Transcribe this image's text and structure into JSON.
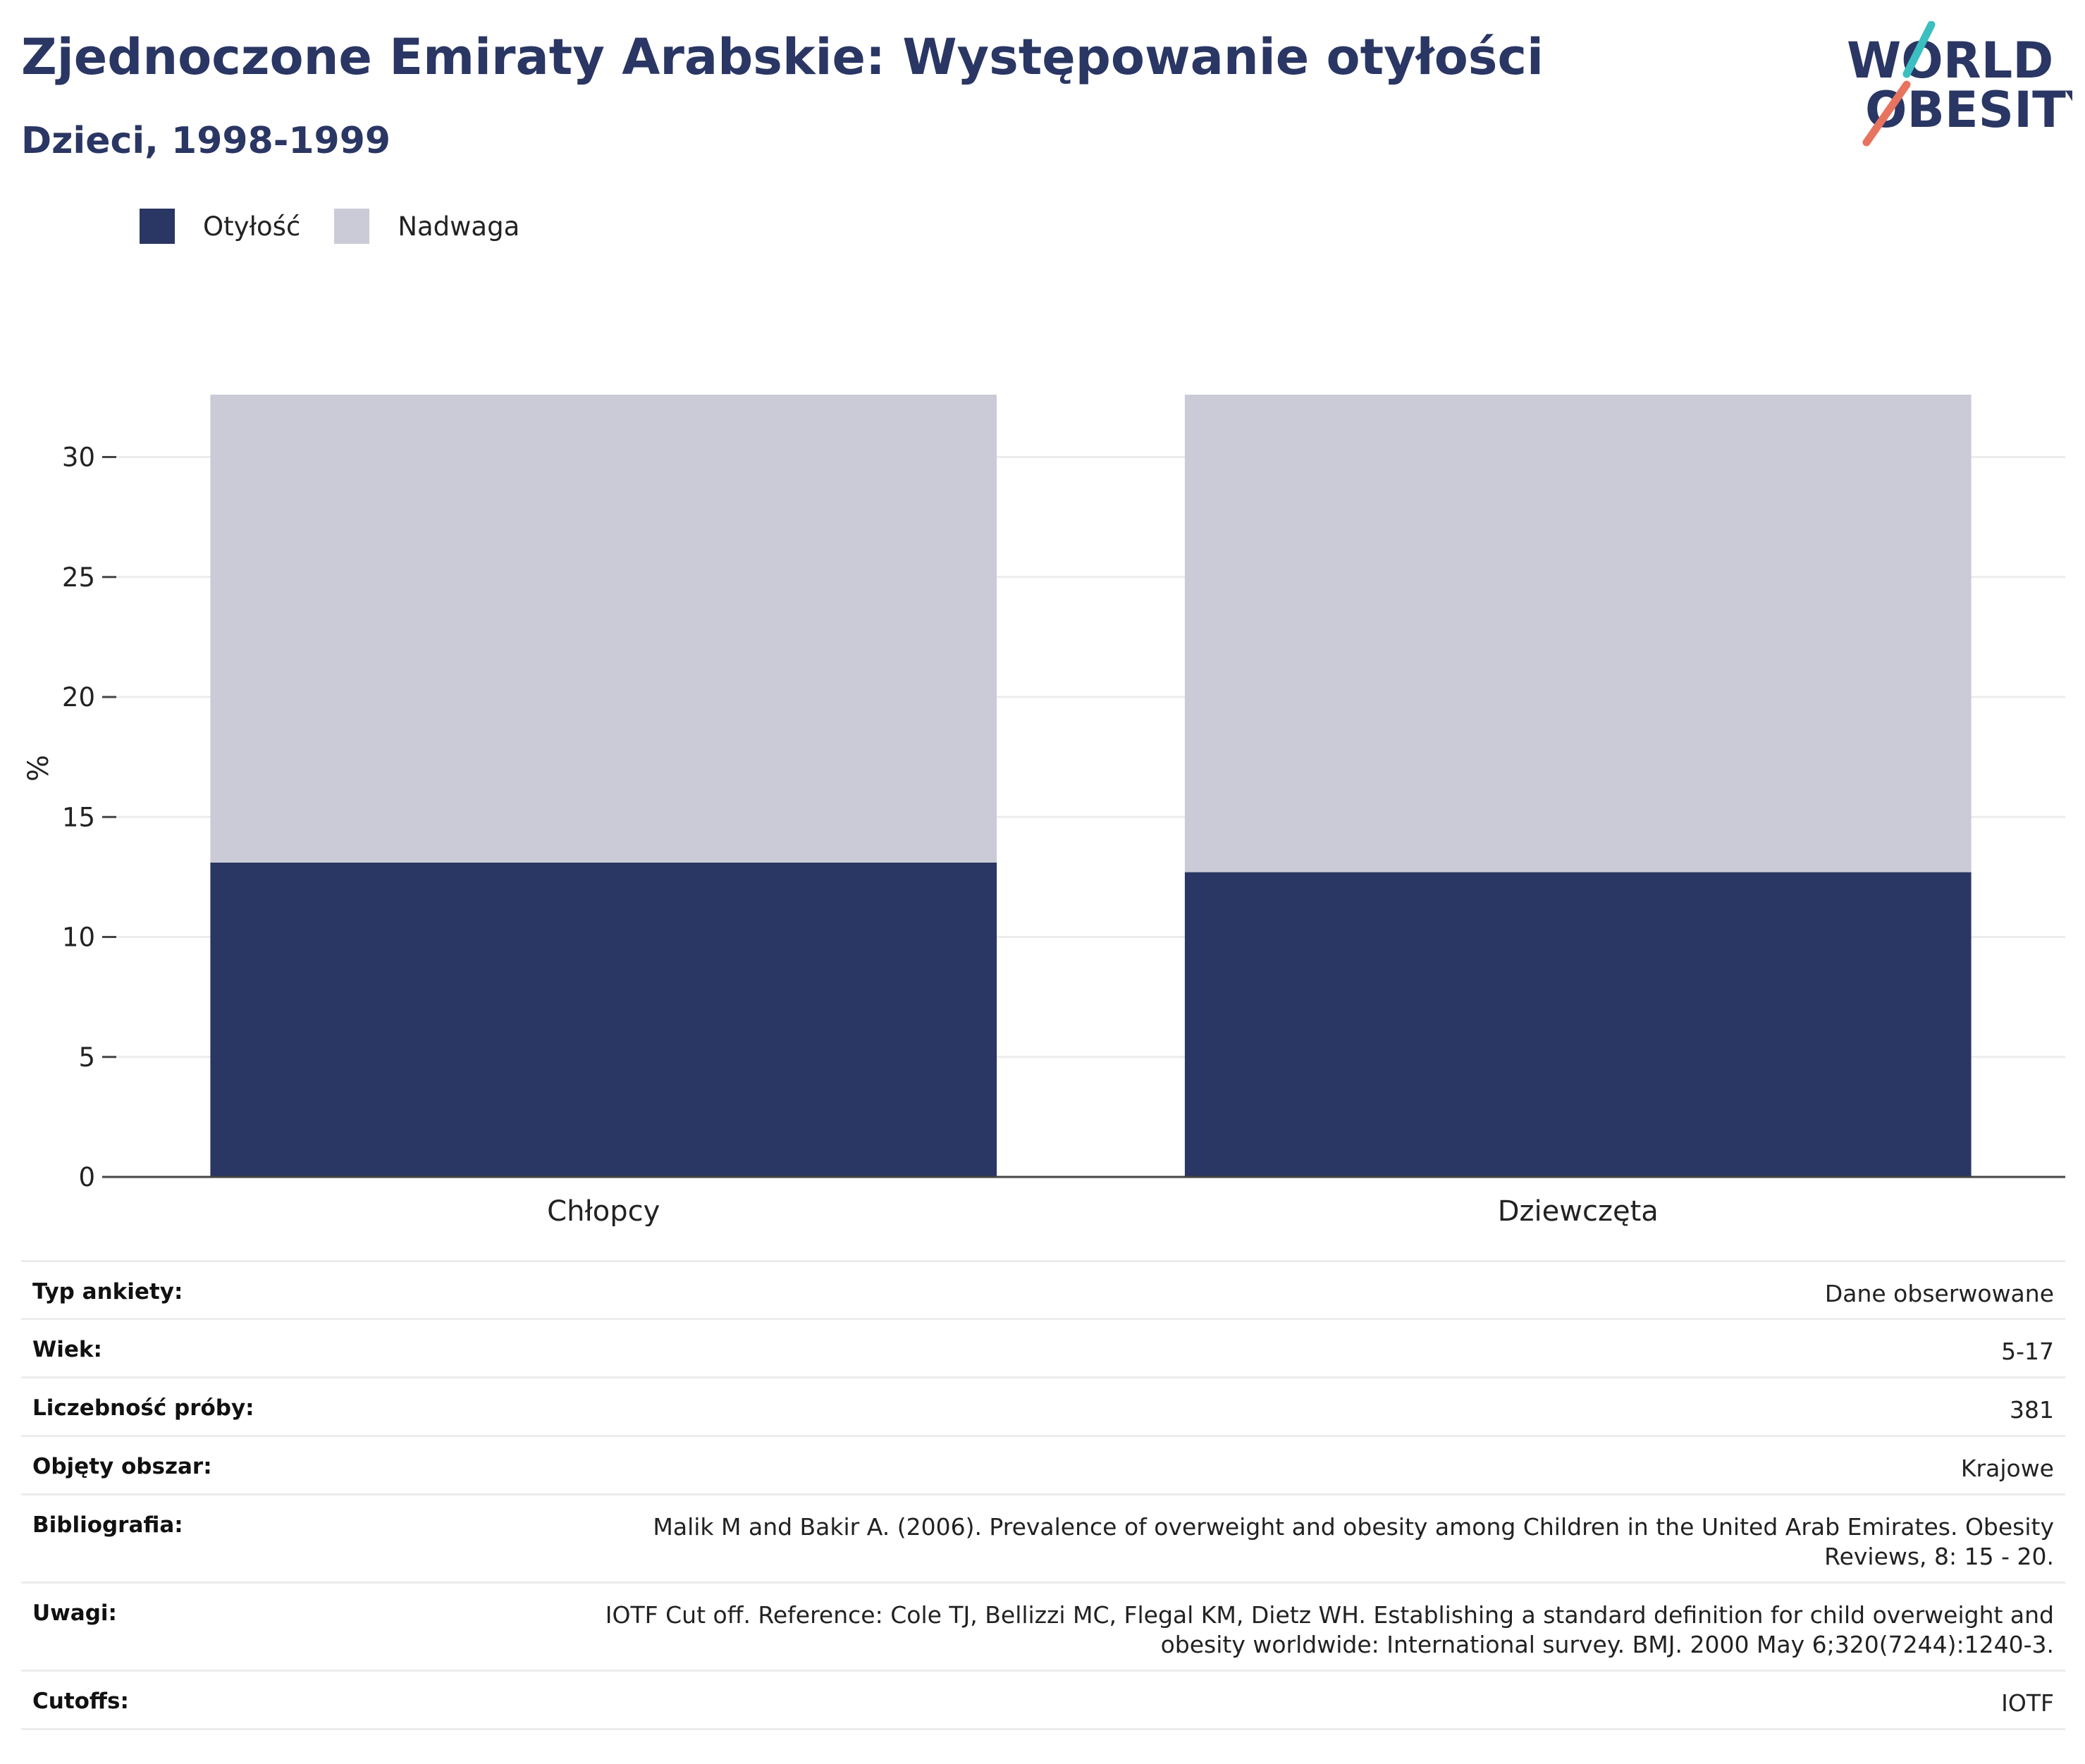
{
  "header": {
    "title": "Zjednoczone Emiraty Arabskie: Występowanie otyłości",
    "subtitle": "Dzieci, 1998-1999"
  },
  "logo": {
    "line1": "WORLD",
    "line2": "OBESITY"
  },
  "colors": {
    "obesity": "#2a3663",
    "overweight": "#cacbd7",
    "title": "#2a3663",
    "grid": "#ececec",
    "logo_teal": "#3bbfc0",
    "logo_coral": "#e8735f"
  },
  "chart_data": {
    "type": "bar",
    "stacked": true,
    "categories": [
      "Chłopcy",
      "Dziewczęta"
    ],
    "series": [
      {
        "name": "Otyłość",
        "values": [
          13.1,
          12.7
        ]
      },
      {
        "name": "Nadwaga",
        "values": [
          19.5,
          19.9
        ]
      }
    ],
    "ylabel": "%",
    "ylim": [
      0,
      32.6
    ],
    "yticks": [
      0,
      5,
      10,
      15,
      20,
      25,
      30
    ],
    "grid": true,
    "legend_position": "top-left"
  },
  "meta": [
    {
      "label": "Typ ankiety:",
      "value": "Dane obserwowane"
    },
    {
      "label": "Wiek:",
      "value": "5-17"
    },
    {
      "label": "Liczebność próby:",
      "value": "381"
    },
    {
      "label": "Objęty obszar:",
      "value": "Krajowe"
    },
    {
      "label": "Bibliografia:",
      "value": "Malik M and Bakir A. (2006). Prevalence of overweight and obesity among Children in the United Arab Emirates. Obesity Reviews, 8: 15 - 20."
    },
    {
      "label": "Uwagi:",
      "value": "IOTF Cut off. Reference: Cole TJ, Bellizzi MC, Flegal KM, Dietz WH. Establishing a standard definition for child overweight and obesity worldwide: International survey. BMJ. 2000 May 6;320(7244):1240-3."
    },
    {
      "label": "Cutoffs:",
      "value": "IOTF"
    }
  ]
}
